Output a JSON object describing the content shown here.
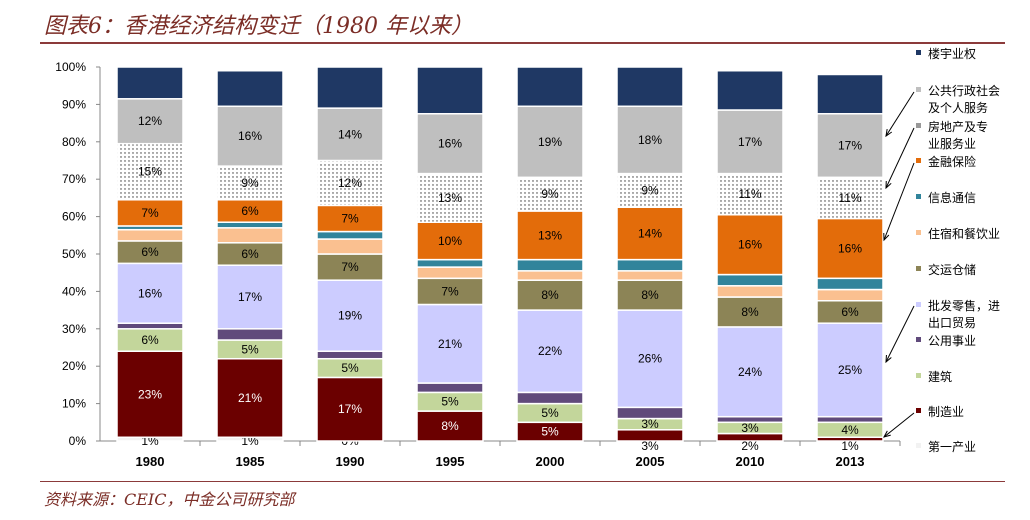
{
  "title": "图表6：香港经济结构变迁（1980 年以来）",
  "source": "资料来源：CEIC，中金公司研究部",
  "chart_data": {
    "type": "bar",
    "stacked": true,
    "categories": [
      "1980",
      "1985",
      "1990",
      "1995",
      "2000",
      "2005",
      "2010",
      "2013"
    ],
    "ylim": [
      0,
      100
    ],
    "yticks": [
      "0%",
      "10%",
      "20%",
      "30%",
      "40%",
      "50%",
      "60%",
      "70%",
      "80%",
      "90%",
      "100%"
    ],
    "legend_position": "right",
    "series": [
      {
        "name": "第一产业",
        "color": "#f2f2f2",
        "values": [
          1,
          1,
          0,
          0,
          0,
          0,
          0,
          0
        ],
        "labels": [
          "1%",
          "1%",
          "0%",
          "",
          "",
          "",
          "",
          ""
        ]
      },
      {
        "name": "制造业",
        "color": "#6b0000",
        "values": [
          23,
          21,
          17,
          8,
          5,
          3,
          2,
          1
        ],
        "labels": [
          "23%",
          "21%",
          "17%",
          "8%",
          "5%",
          "3%",
          "2%",
          "1%"
        ]
      },
      {
        "name": "建筑",
        "color": "#c3d69b",
        "values": [
          6,
          5,
          5,
          5,
          5,
          3,
          3,
          4
        ],
        "labels": [
          "6%",
          "5%",
          "5%",
          "5%",
          "5%",
          "3%",
          "3%",
          "4%"
        ]
      },
      {
        "name": "公用事业",
        "color": "#604a7b",
        "values": [
          1.5,
          3,
          2,
          2.5,
          3,
          3,
          1.5,
          1.5
        ],
        "labels": [
          "",
          "",
          "",
          "",
          "",
          "",
          "",
          ""
        ]
      },
      {
        "name": "批发零售，进出口贸易",
        "color": "#ccccff",
        "values": [
          16,
          17,
          19,
          21,
          22,
          26,
          24,
          25
        ],
        "labels": [
          "16%",
          "17%",
          "19%",
          "21%",
          "22%",
          "26%",
          "24%",
          "25%"
        ]
      },
      {
        "name": "交运仓储",
        "color": "#8c8456",
        "values": [
          6,
          6,
          7,
          7,
          8,
          8,
          8,
          6
        ],
        "labels": [
          "6%",
          "6%",
          "7%",
          "7%",
          "8%",
          "8%",
          "8%",
          "6%"
        ]
      },
      {
        "name": "住宿和餐饮业",
        "color": "#fac090",
        "values": [
          3,
          4,
          4,
          3,
          2.5,
          2.5,
          3,
          3
        ],
        "labels": [
          "",
          "",
          "",
          "",
          "",
          "",
          "",
          ""
        ]
      },
      {
        "name": "信息通信",
        "color": "#31849b",
        "values": [
          1,
          1.5,
          2,
          2,
          3,
          3,
          3,
          3
        ],
        "labels": [
          "",
          "",
          "",
          "",
          "",
          "",
          "",
          ""
        ]
      },
      {
        "name": "金融保险",
        "color": "#e36c0a",
        "values": [
          7,
          6,
          7,
          10,
          13,
          14,
          16,
          16
        ],
        "labels": [
          "7%",
          "6%",
          "7%",
          "10%",
          "13%",
          "14%",
          "16%",
          "16%"
        ]
      },
      {
        "name": "房地产及专业服务业",
        "color": "dotted",
        "values": [
          15,
          9,
          12,
          13,
          9,
          9,
          11,
          11
        ],
        "labels": [
          "15%",
          "9%",
          "12%",
          "13%",
          "9%",
          "9%",
          "11%",
          "11%"
        ]
      },
      {
        "name": "公共行政社会及个人服务",
        "color": "#bfbfbf",
        "values": [
          12,
          16,
          14,
          16,
          19,
          18,
          17,
          17
        ],
        "labels": [
          "12%",
          "16%",
          "14%",
          "16%",
          "19%",
          "18%",
          "17%",
          "17%"
        ]
      },
      {
        "name": "楼宇业权",
        "color": "#1f3864",
        "values": [
          8.5,
          9.5,
          11,
          12.5,
          10.5,
          10.5,
          10.5,
          10.5
        ],
        "labels": [
          "",
          "",
          "",
          "",
          "",
          "",
          "",
          ""
        ]
      }
    ]
  }
}
